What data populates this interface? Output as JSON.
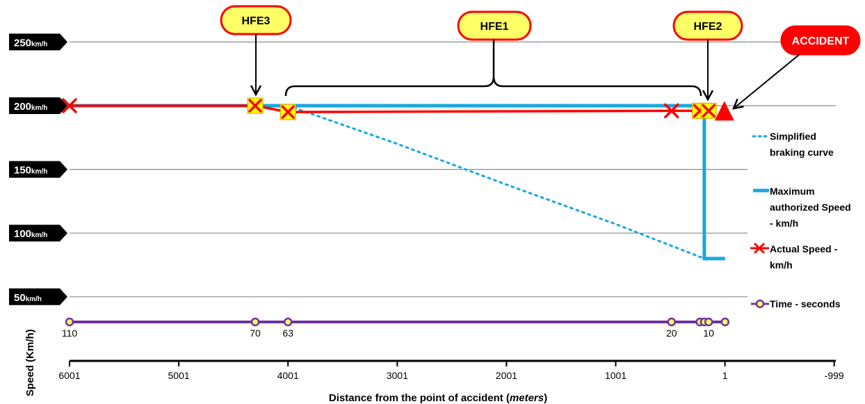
{
  "chart_data": {
    "type": "line",
    "xlabel": "Distance from the point of accident (",
    "xlabel_unit": "meters",
    "xlabel_close": ")",
    "ylabel": "Speed (Km/h)",
    "x_ticks": [
      "6001",
      "5001",
      "4001",
      "3001",
      "2001",
      "1001",
      "1",
      "-999"
    ],
    "x_tick_values": [
      6001,
      5001,
      4001,
      3001,
      2001,
      1001,
      1,
      -999
    ],
    "x_range": [
      6001,
      -999
    ],
    "y_range": [
      0,
      270
    ],
    "y_markers": [
      {
        "value": 250,
        "num": "250",
        "unit": "km/h"
      },
      {
        "value": 200,
        "num": "200",
        "unit": "km/h"
      },
      {
        "value": 150,
        "num": "150",
        "unit": "km/h"
      },
      {
        "value": 100,
        "num": "100",
        "unit": "km/h"
      },
      {
        "value": 50,
        "num": "50",
        "unit": "km/h"
      }
    ],
    "grid": true,
    "series": [
      {
        "name": "Maximum authorized Speed - km/h",
        "color": "#1aa7e0",
        "style": "solid",
        "points": [
          [
            6001,
            200
          ],
          [
            190,
            200
          ],
          [
            190,
            80
          ],
          [
            0,
            80
          ]
        ]
      },
      {
        "name": "Simplified braking curve",
        "color": "#1aa7e0",
        "style": "dotted",
        "points": [
          [
            4001,
            200
          ],
          [
            3000,
            170
          ],
          [
            2000,
            138
          ],
          [
            1000,
            107
          ],
          [
            190,
            80
          ]
        ]
      },
      {
        "name": "Actual Speed - km/h",
        "color": "#ff0000",
        "style": "solid-cross",
        "points": [
          [
            6001,
            200
          ],
          [
            4301,
            200
          ],
          [
            4001,
            195
          ],
          [
            490,
            196
          ],
          [
            230,
            196
          ],
          [
            170,
            196
          ]
        ]
      },
      {
        "name": "Time - seconds",
        "color": "#7030a0",
        "style": "line-circle",
        "points": [
          [
            6001,
            110
          ],
          [
            4301,
            70
          ],
          [
            4001,
            63
          ],
          [
            490,
            20
          ],
          [
            230,
            13
          ],
          [
            190,
            12
          ],
          [
            150,
            10
          ],
          [
            0,
            0
          ]
        ],
        "labels": [
          {
            "x": 6001,
            "text": "110"
          },
          {
            "x": 4301,
            "text": "70"
          },
          {
            "x": 4001,
            "text": "63"
          },
          {
            "x": 490,
            "text": "20"
          },
          {
            "x": 150,
            "text": "10"
          }
        ]
      }
    ],
    "highlight_points": [
      {
        "x": 4301,
        "y": 200
      },
      {
        "x": 4001,
        "y": 195
      },
      {
        "x": 230,
        "y": 196
      },
      {
        "x": 150,
        "y": 196
      }
    ],
    "accident_marker": {
      "x": 0,
      "y": 196
    },
    "legend": {
      "position": "right",
      "entries": [
        {
          "lines": [
            "Simplified",
            "braking curve"
          ]
        },
        {
          "lines": [
            "Maximum",
            "authorized Speed",
            "- km/h"
          ]
        },
        {
          "lines": [
            "Actual Speed -",
            "km/h"
          ]
        },
        {
          "lines": [
            "Time - seconds"
          ]
        }
      ]
    },
    "annotations": [
      {
        "label": "HFE3"
      },
      {
        "label": "HFE1"
      },
      {
        "label": "HFE2"
      },
      {
        "label": "ACCIDENT"
      }
    ]
  }
}
